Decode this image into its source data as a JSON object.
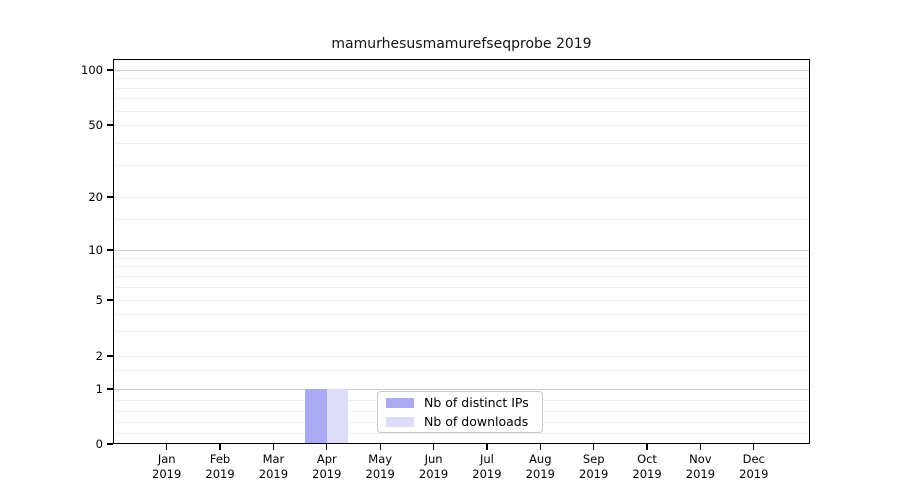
{
  "title": "mamurhesusmamurefseqprobe 2019",
  "legend": {
    "items": [
      {
        "label": "Nb of distinct IPs",
        "color": "#aaaaf2"
      },
      {
        "label": "Nb of downloads",
        "color": "#ddddfa"
      }
    ]
  },
  "chart_data": {
    "type": "bar",
    "title": "mamurhesusmamurefseqprobe 2019",
    "categories": [
      "Jan 2019",
      "Feb 2019",
      "Mar 2019",
      "Apr 2019",
      "May 2019",
      "Jun 2019",
      "Jul 2019",
      "Aug 2019",
      "Sep 2019",
      "Oct 2019",
      "Nov 2019",
      "Dec 2019"
    ],
    "series": [
      {
        "name": "Nb of distinct IPs",
        "color": "#aaaaf2",
        "values": [
          0,
          0,
          0,
          1,
          0,
          0,
          0,
          0,
          0,
          0,
          0,
          0
        ]
      },
      {
        "name": "Nb of downloads",
        "color": "#ddddfa",
        "values": [
          0,
          0,
          0,
          1,
          0,
          0,
          0,
          0,
          0,
          0,
          0,
          0
        ]
      }
    ],
    "xlabel": "",
    "ylabel": "",
    "y_scale": "symlog",
    "ylim": [
      0,
      115
    ],
    "y_ticks": [
      0,
      1,
      2,
      5,
      10,
      20,
      50,
      100
    ],
    "y_major_gridlines": [
      1,
      10,
      100
    ],
    "y_minor_gridlines": [
      0.2,
      0.4,
      0.6,
      0.8,
      1.5,
      2,
      3,
      4,
      5,
      6,
      7,
      8,
      9,
      15,
      20,
      30,
      40,
      50,
      60,
      70,
      80,
      90
    ],
    "grid": true,
    "legend_position": "lower center"
  },
  "colors": {
    "background": "#ffffff",
    "axis": "#000000",
    "grid_major": "#c9c9c9",
    "grid_minor": "#efefef",
    "text": "#000000"
  }
}
